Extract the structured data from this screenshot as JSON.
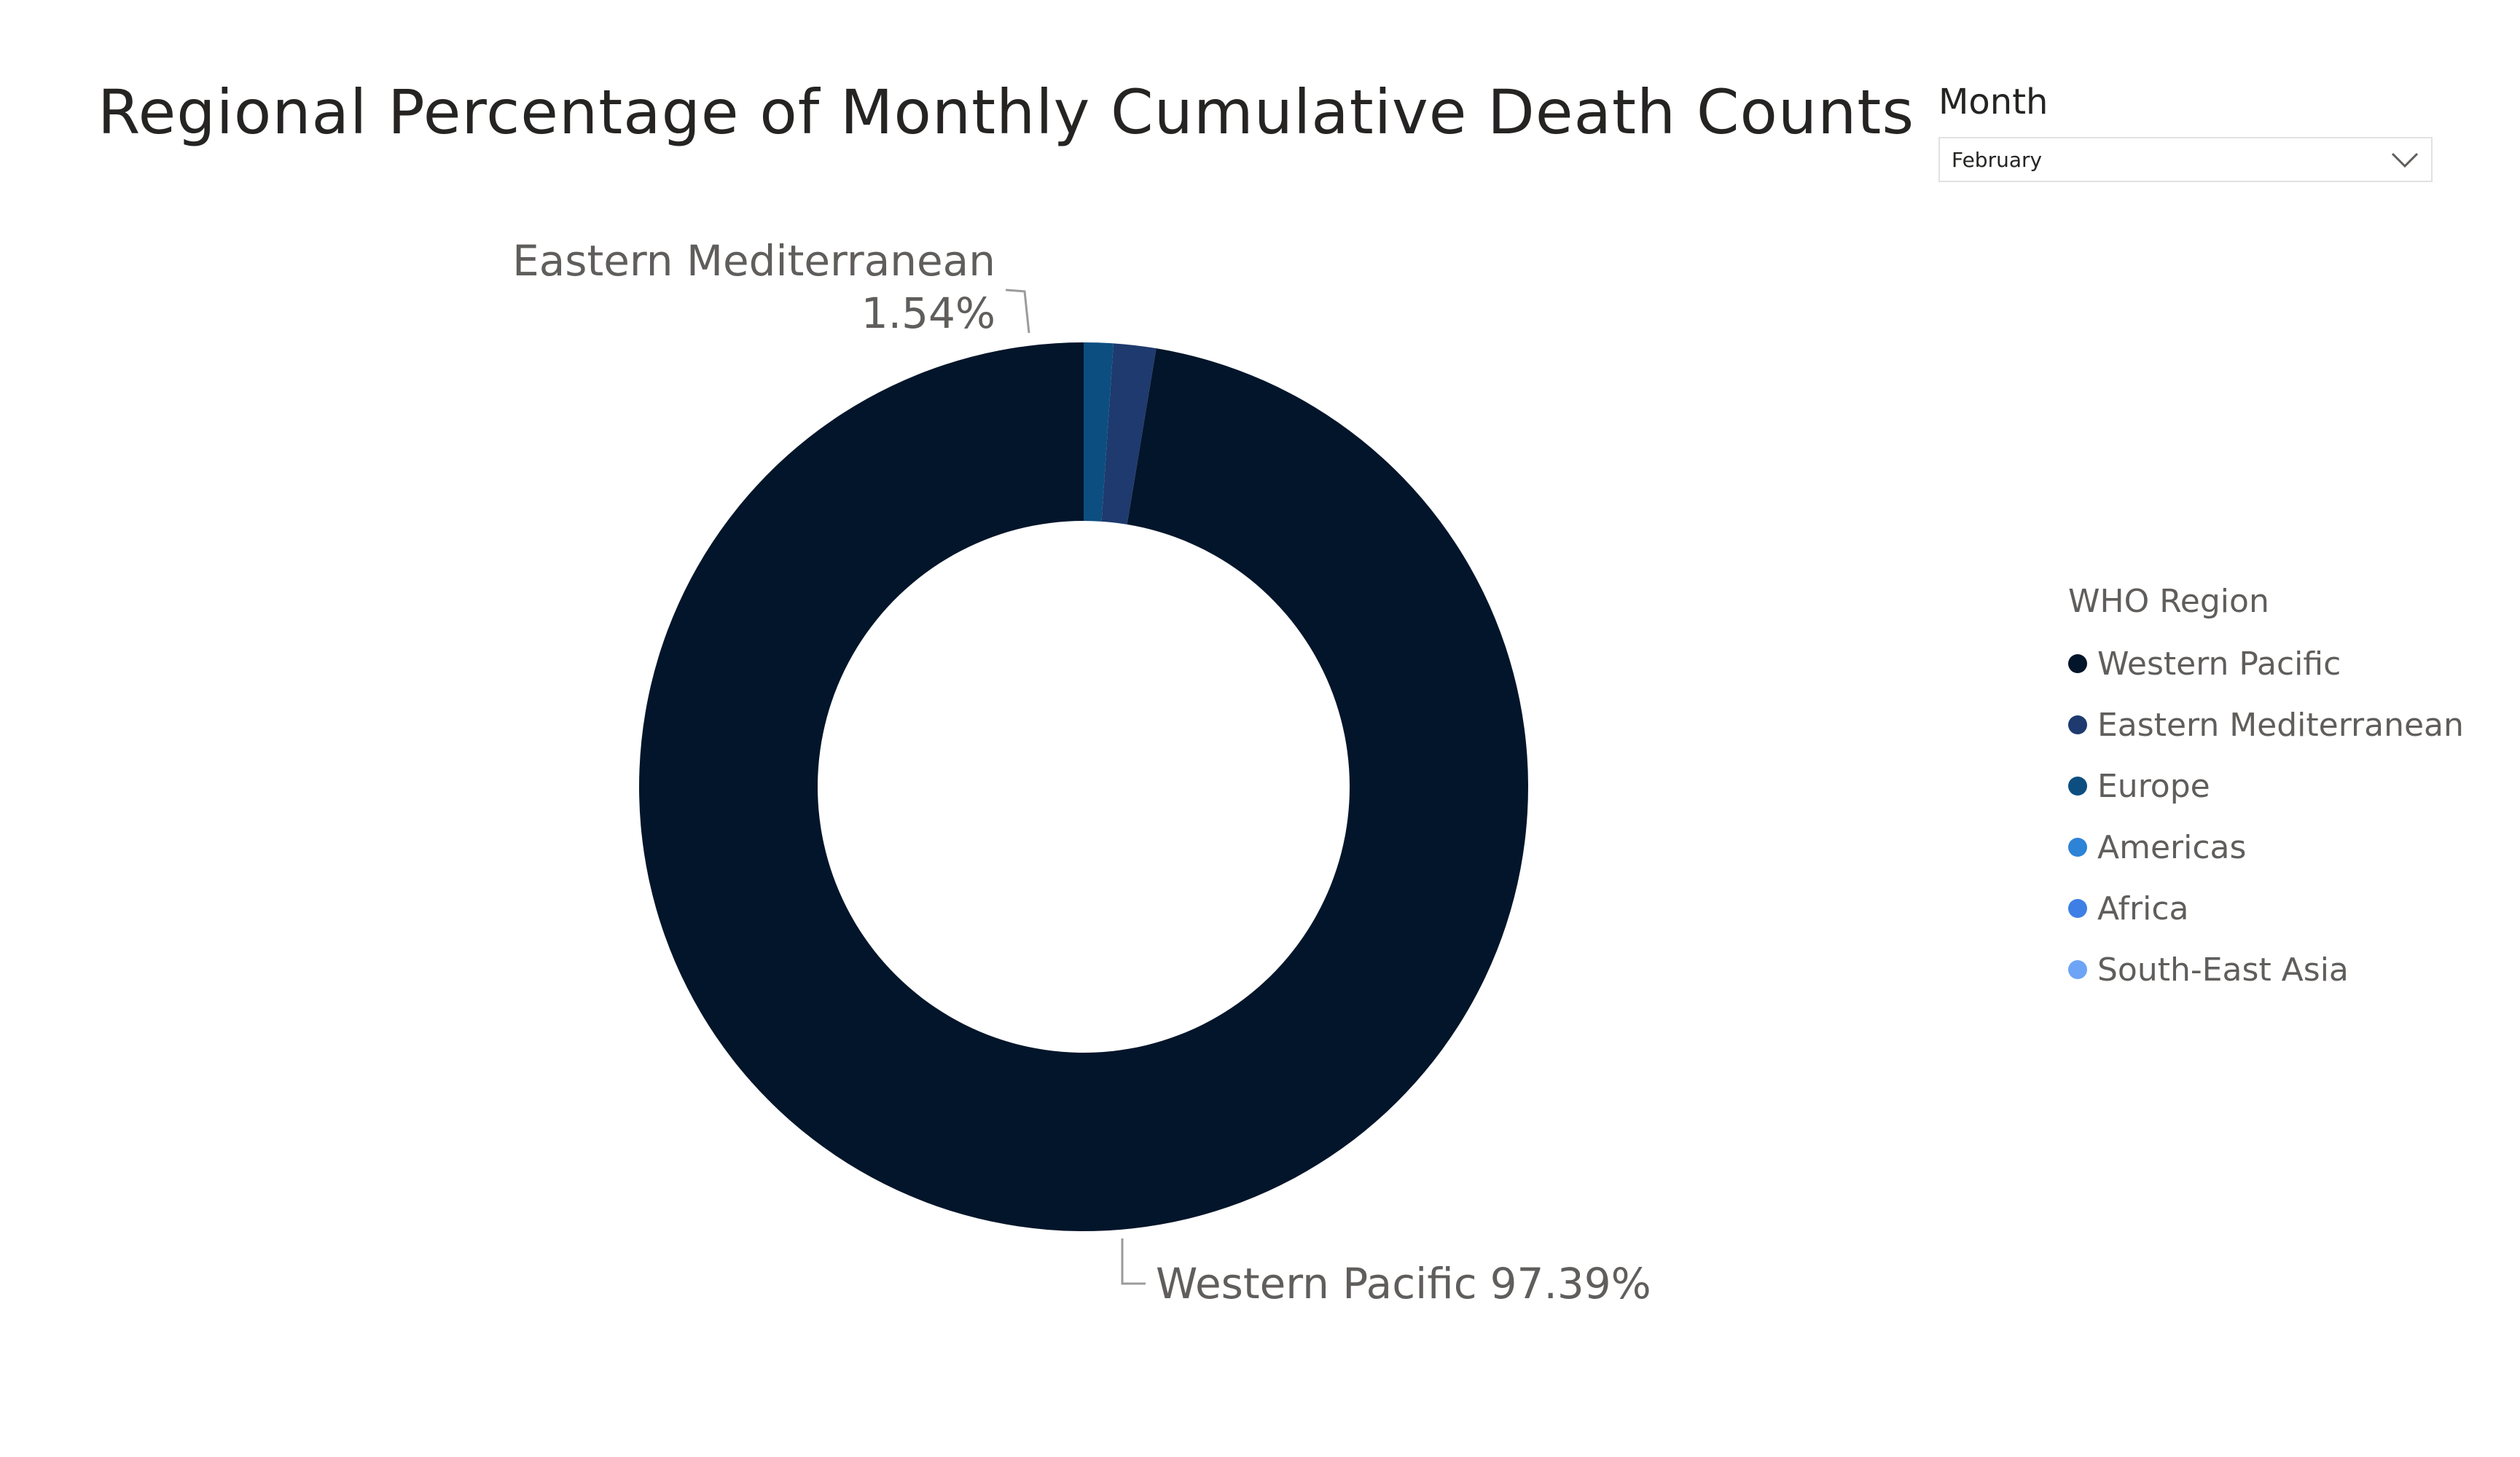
{
  "title": "Regional Percentage of Monthly Cumulative Death Counts",
  "slicer": {
    "header": "Month",
    "selected": "February",
    "chevron_icon": "chevron-down-icon"
  },
  "legend": {
    "title": "WHO Region",
    "items": [
      {
        "label": "Western Pacific",
        "color": "#02152a"
      },
      {
        "label": "Eastern Mediterranean",
        "color": "#1e3a6e"
      },
      {
        "label": "Europe",
        "color": "#0d4e80"
      },
      {
        "label": "Americas",
        "color": "#2d83d6"
      },
      {
        "label": "Africa",
        "color": "#3e7fe6"
      },
      {
        "label": "South-East Asia",
        "color": "#6ea4f5"
      }
    ]
  },
  "chart_data": {
    "type": "pie",
    "title": "Regional Percentage of Monthly Cumulative Death Counts",
    "categories": [
      "Western Pacific",
      "Eastern Mediterranean",
      "Europe",
      "Americas",
      "Africa",
      "South-East Asia"
    ],
    "values": [
      97.39,
      1.54,
      1.07,
      0,
      0,
      0
    ],
    "unit": "%",
    "donut": true,
    "legend_position": "right",
    "data_labels": [
      {
        "category": "Eastern Mediterranean",
        "name": "Eastern Mediterranean",
        "value": "1.54%"
      },
      {
        "category": "Western Pacific",
        "name": "Western Pacific",
        "value": "97.39%"
      }
    ]
  }
}
